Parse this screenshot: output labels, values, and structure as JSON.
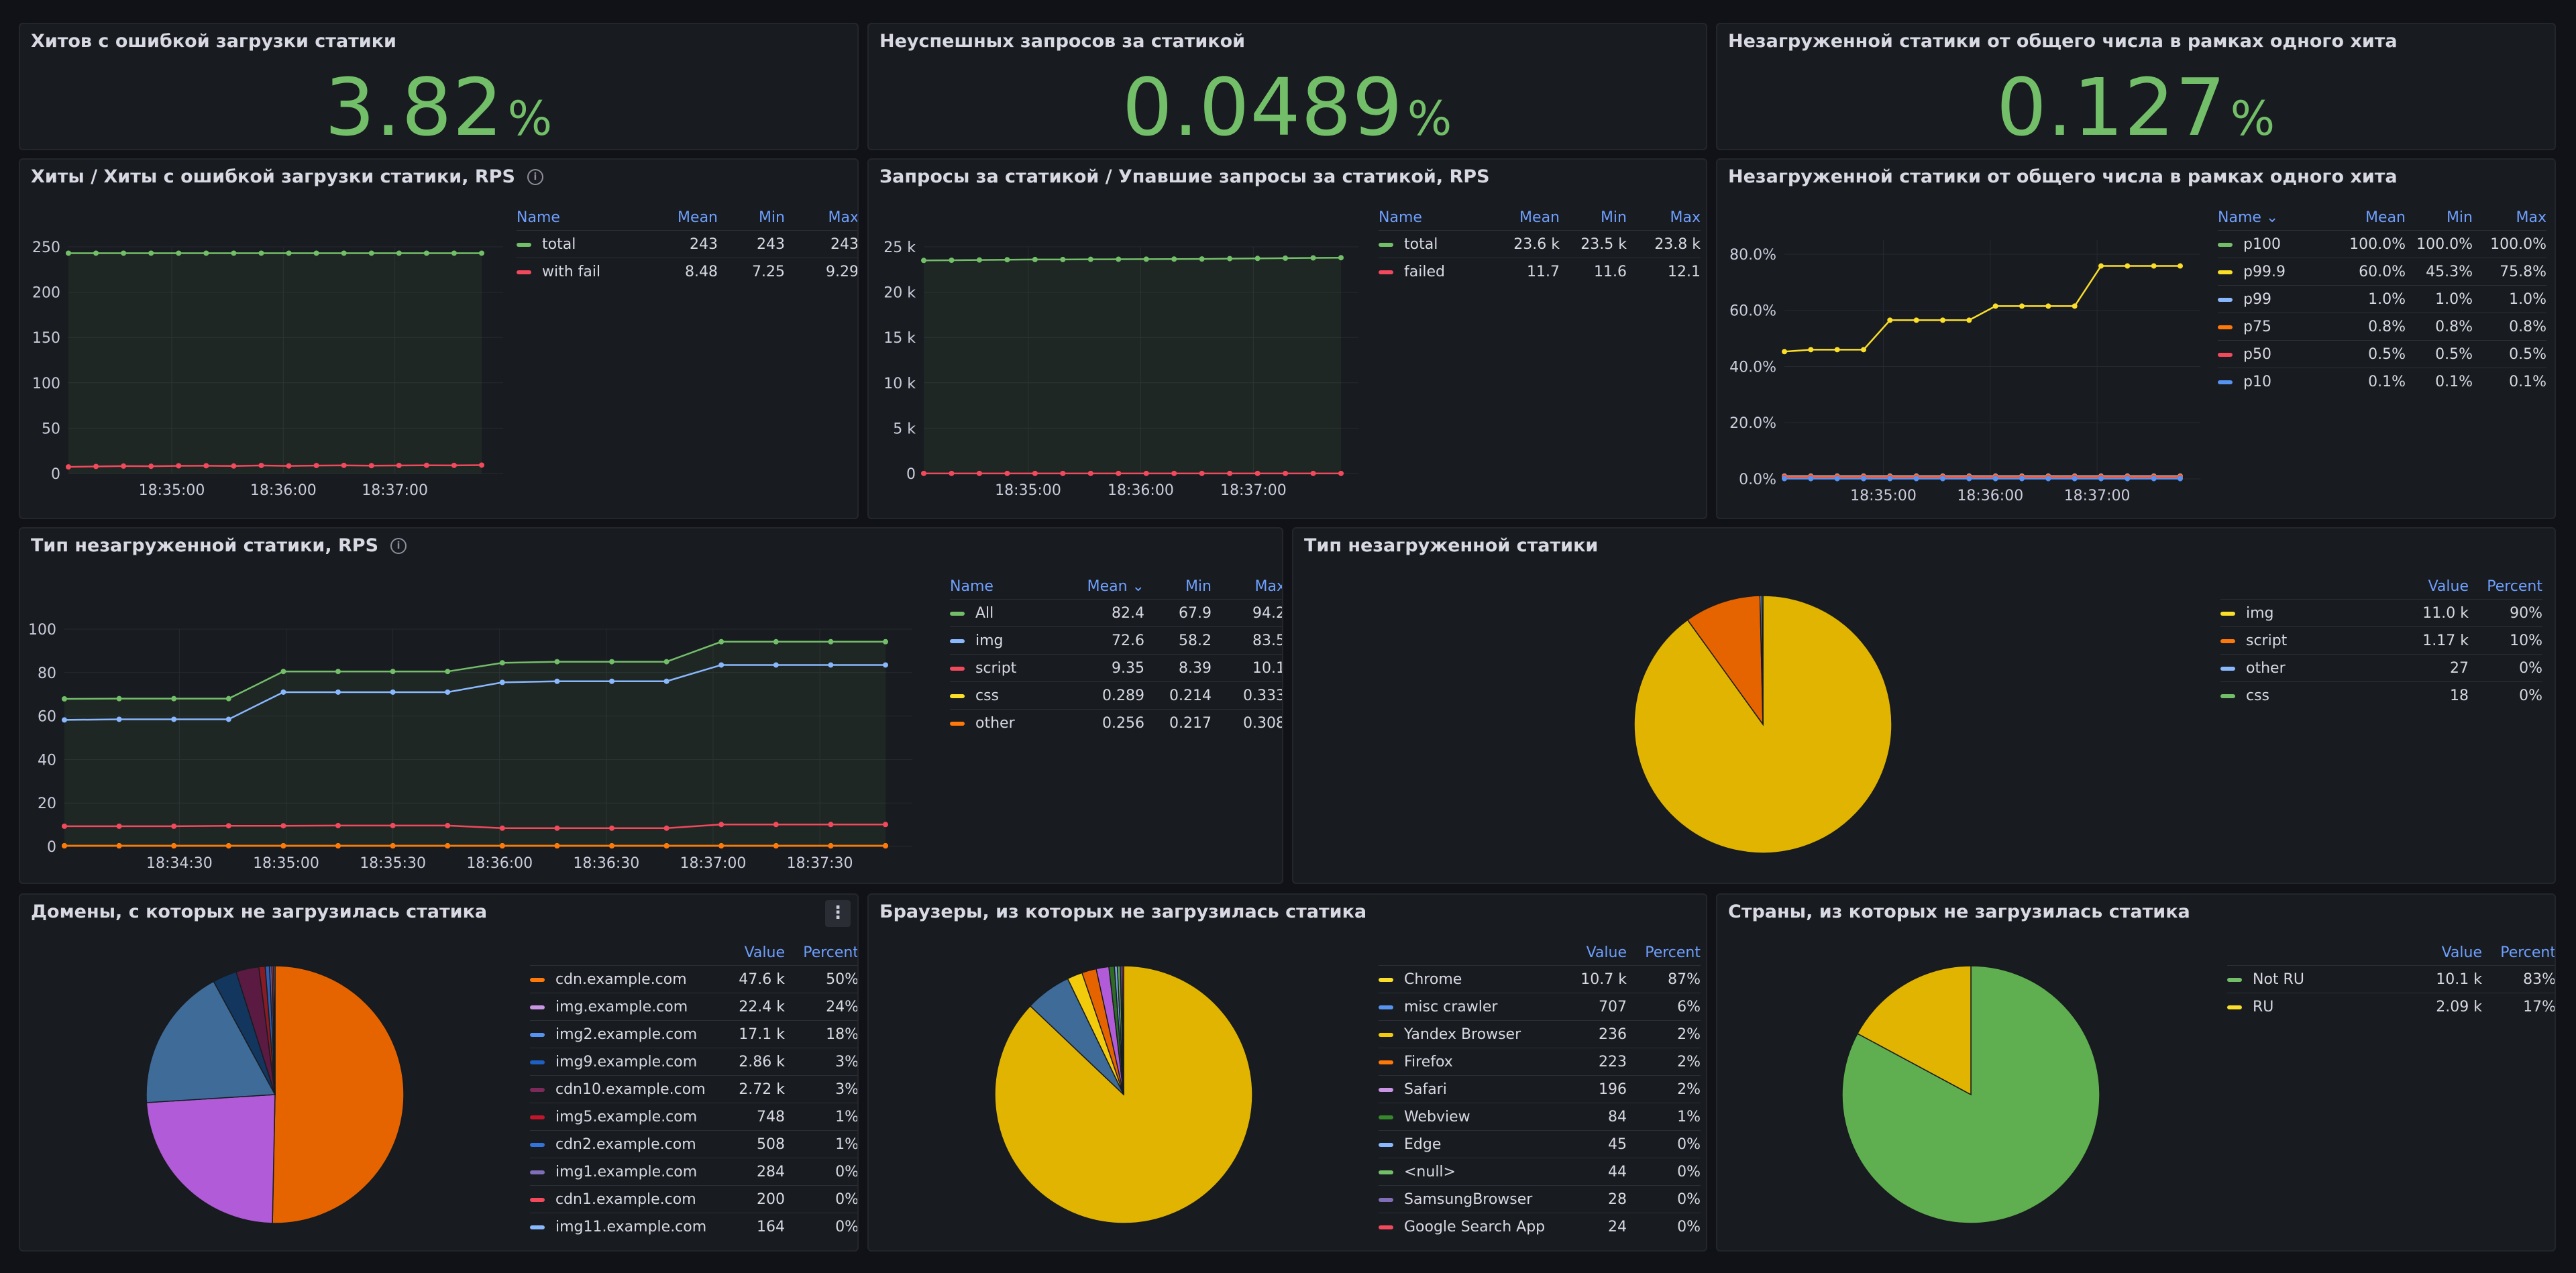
{
  "stats": [
    {
      "title": "Хитов с ошибкой загрузки статики",
      "value": "3.82",
      "unit": "%"
    },
    {
      "title": "Неуспешных запросов за статикой",
      "value": "0.0489",
      "unit": "%"
    },
    {
      "title": "Незагруженной статики от общего числа в рамках одного хита",
      "value": "0.127",
      "unit": "%"
    }
  ],
  "hits": {
    "title": "Хиты / Хиты с ошибкой загрузки статики, RPS",
    "headers": [
      "Name",
      "Mean",
      "Min",
      "Max"
    ],
    "rows": [
      {
        "name": "total",
        "color": "#73bf69",
        "cells": [
          "243",
          "243",
          "243"
        ]
      },
      {
        "name": "with fail",
        "color": "#f2495c",
        "cells": [
          "8.48",
          "7.25",
          "9.29"
        ]
      }
    ]
  },
  "requests": {
    "title": "Запросы за статикой / Упавшие запросы за статикой, RPS",
    "headers": [
      "Name",
      "Mean",
      "Min",
      "Max"
    ],
    "rows": [
      {
        "name": "total",
        "color": "#73bf69",
        "cells": [
          "23.6 k",
          "23.5 k",
          "23.8 k"
        ]
      },
      {
        "name": "failed",
        "color": "#f2495c",
        "cells": [
          "11.7",
          "11.6",
          "12.1"
        ]
      }
    ]
  },
  "percentiles": {
    "title": "Незагруженной статики от общего числа в рамках одного хита",
    "headers": [
      "Name ⌄",
      "Mean",
      "Min",
      "Max"
    ],
    "rows": [
      {
        "name": "p100",
        "color": "#73bf69",
        "cells": [
          "100.0%",
          "100.0%",
          "100.0%"
        ]
      },
      {
        "name": "p99.9",
        "color": "#fade2a",
        "cells": [
          "60.0%",
          "45.3%",
          "75.8%"
        ]
      },
      {
        "name": "p99",
        "color": "#8ab8ff",
        "cells": [
          "1.0%",
          "1.0%",
          "1.0%"
        ]
      },
      {
        "name": "p75",
        "color": "#ff780a",
        "cells": [
          "0.8%",
          "0.8%",
          "0.8%"
        ]
      },
      {
        "name": "p50",
        "color": "#f2495c",
        "cells": [
          "0.5%",
          "0.5%",
          "0.5%"
        ]
      },
      {
        "name": "p10",
        "color": "#5794f2",
        "cells": [
          "0.1%",
          "0.1%",
          "0.1%"
        ]
      }
    ]
  },
  "types": {
    "title": "Тип незагруженной статики, RPS",
    "headers": [
      "Name",
      "Mean ⌄",
      "Min",
      "Max"
    ],
    "rows": [
      {
        "name": "All",
        "color": "#73bf69",
        "cells": [
          "82.4",
          "67.9",
          "94.2"
        ]
      },
      {
        "name": "img",
        "color": "#8ab8ff",
        "cells": [
          "72.6",
          "58.2",
          "83.5"
        ]
      },
      {
        "name": "script",
        "color": "#f2495c",
        "cells": [
          "9.35",
          "8.39",
          "10.1"
        ]
      },
      {
        "name": "css",
        "color": "#fade2a",
        "cells": [
          "0.289",
          "0.214",
          "0.333"
        ]
      },
      {
        "name": "other",
        "color": "#ff780a",
        "cells": [
          "0.256",
          "0.217",
          "0.308"
        ]
      }
    ]
  },
  "type_pie": {
    "title": "Тип незагруженной статики",
    "headers": [
      "",
      "Value",
      "Percent"
    ],
    "rows": [
      {
        "name": "img",
        "color": "#fade2a",
        "cells": [
          "11.0 k",
          "90%"
        ]
      },
      {
        "name": "script",
        "color": "#ff780a",
        "cells": [
          "1.17 k",
          "10%"
        ]
      },
      {
        "name": "other",
        "color": "#8ab8ff",
        "cells": [
          "27",
          "0%"
        ]
      },
      {
        "name": "css",
        "color": "#73bf69",
        "cells": [
          "18",
          "0%"
        ]
      }
    ]
  },
  "domains": {
    "title": "Домены, с которых не загрузилась статика",
    "menu": "⋮",
    "headers": [
      "",
      "Value",
      "Percent"
    ],
    "rows": [
      {
        "name": "cdn.example.com",
        "color": "#ff780a",
        "cells": [
          "47.6 k",
          "50%"
        ]
      },
      {
        "name": "img.example.com",
        "color": "#ca95e5",
        "cells": [
          "22.4 k",
          "24%"
        ]
      },
      {
        "name": "img2.example.com",
        "color": "#5794f2",
        "cells": [
          "17.1 k",
          "18%"
        ]
      },
      {
        "name": "img9.example.com",
        "color": "#1f60c4",
        "cells": [
          "2.86 k",
          "3%"
        ]
      },
      {
        "name": "cdn10.example.com",
        "color": "#7c2a5a",
        "cells": [
          "2.72 k",
          "3%"
        ]
      },
      {
        "name": "img5.example.com",
        "color": "#c4162a",
        "cells": [
          "748",
          "1%"
        ]
      },
      {
        "name": "cdn2.example.com",
        "color": "#3274d9",
        "cells": [
          "508",
          "1%"
        ]
      },
      {
        "name": "img1.example.com",
        "color": "#806eb7",
        "cells": [
          "284",
          "0%"
        ]
      },
      {
        "name": "cdn1.example.com",
        "color": "#f2495c",
        "cells": [
          "200",
          "0%"
        ]
      },
      {
        "name": "img11.example.com",
        "color": "#8ab8ff",
        "cells": [
          "164",
          "0%"
        ]
      }
    ]
  },
  "browsers": {
    "title": "Браузеры, из которых не загрузилась статика",
    "headers": [
      "",
      "Value",
      "Percent"
    ],
    "rows": [
      {
        "name": "Chrome",
        "color": "#fade2a",
        "cells": [
          "10.7 k",
          "87%"
        ]
      },
      {
        "name": "misc crawler",
        "color": "#5794f2",
        "cells": [
          "707",
          "6%"
        ]
      },
      {
        "name": "Yandex Browser",
        "color": "#f2cc0c",
        "cells": [
          "236",
          "2%"
        ]
      },
      {
        "name": "Firefox",
        "color": "#ff780a",
        "cells": [
          "223",
          "2%"
        ]
      },
      {
        "name": "Safari",
        "color": "#ca95e5",
        "cells": [
          "196",
          "2%"
        ]
      },
      {
        "name": "Webview",
        "color": "#37872d",
        "cells": [
          "84",
          "1%"
        ]
      },
      {
        "name": "Edge",
        "color": "#8ab8ff",
        "cells": [
          "45",
          "0%"
        ]
      },
      {
        "name": "<null>",
        "color": "#73bf69",
        "cells": [
          "44",
          "0%"
        ]
      },
      {
        "name": "SamsungBrowser",
        "color": "#806eb7",
        "cells": [
          "28",
          "0%"
        ]
      },
      {
        "name": "Google Search App",
        "color": "#f2495c",
        "cells": [
          "24",
          "0%"
        ]
      }
    ]
  },
  "countries": {
    "title": "Страны, из которых не загрузилась статика",
    "headers": [
      "",
      "Value",
      "Percent"
    ],
    "rows": [
      {
        "name": "Not RU",
        "color": "#73bf69",
        "cells": [
          "10.1 k",
          "83%"
        ]
      },
      {
        "name": "RU",
        "color": "#fade2a",
        "cells": [
          "2.09 k",
          "17%"
        ]
      }
    ]
  },
  "chart_data": [
    {
      "type": "line",
      "title": "Хиты / Хиты с ошибкой загрузки статики, RPS",
      "ylim": [
        0,
        250
      ],
      "y_ticks": [
        "0",
        "50",
        "100",
        "150",
        "200",
        "250"
      ],
      "x_ticks": [
        "18:35:00",
        "18:36:00",
        "18:37:00"
      ],
      "series": [
        {
          "name": "total",
          "color": "#73bf69",
          "fill": true,
          "values": [
            243,
            243,
            243,
            243,
            243,
            243,
            243,
            243,
            243,
            243,
            243,
            243,
            243,
            243,
            243,
            243
          ]
        },
        {
          "name": "with fail",
          "color": "#f2495c",
          "values": [
            7.3,
            7.8,
            8.2,
            8.0,
            8.5,
            8.6,
            8.3,
            8.9,
            8.4,
            8.8,
            9.0,
            8.7,
            8.9,
            9.1,
            9.0,
            9.29
          ]
        }
      ]
    },
    {
      "type": "line",
      "title": "Запросы за статикой / Упавшие запросы за статикой, RPS",
      "ylim": [
        0,
        25000
      ],
      "y_ticks": [
        "0",
        "5 k",
        "10 k",
        "15 k",
        "20 k",
        "25 k"
      ],
      "x_ticks": [
        "18:35:00",
        "18:36:00",
        "18:37:00"
      ],
      "series": [
        {
          "name": "total",
          "color": "#73bf69",
          "fill": true,
          "values": [
            23500,
            23520,
            23550,
            23580,
            23600,
            23600,
            23620,
            23630,
            23640,
            23650,
            23660,
            23700,
            23720,
            23750,
            23780,
            23800
          ]
        },
        {
          "name": "failed",
          "color": "#f2495c",
          "values": [
            11.7,
            11.6,
            11.7,
            11.8,
            11.7,
            11.6,
            11.7,
            11.8,
            11.9,
            11.7,
            11.6,
            11.7,
            12.0,
            12.1,
            11.8,
            11.7
          ]
        }
      ]
    },
    {
      "type": "line",
      "title": "Незагруженной статики от общего числа в рамках одного хита",
      "ylim": [
        0,
        85
      ],
      "y_ticks": [
        "0.0%",
        "20.0%",
        "40.0%",
        "60.0%",
        "80.0%"
      ],
      "y_tick_values": [
        0,
        20,
        40,
        60,
        80
      ],
      "x_ticks": [
        "18:35:00",
        "18:36:00",
        "18:37:00"
      ],
      "series": [
        {
          "name": "p99.9",
          "color": "#fade2a",
          "values": [
            45.3,
            46,
            46,
            46,
            56.5,
            56.5,
            56.5,
            56.5,
            61.5,
            61.5,
            61.5,
            61.5,
            75.8,
            75.8,
            75.8,
            75.8
          ]
        },
        {
          "name": "p99",
          "color": "#8ab8ff",
          "values": [
            1,
            1,
            1,
            1,
            1,
            1,
            1,
            1,
            1,
            1,
            1,
            1,
            1,
            1,
            1,
            1
          ]
        },
        {
          "name": "p75",
          "color": "#ff780a",
          "values": [
            0.8,
            0.8,
            0.8,
            0.8,
            0.8,
            0.8,
            0.8,
            0.8,
            0.8,
            0.8,
            0.8,
            0.8,
            0.8,
            0.8,
            0.8,
            0.8
          ]
        },
        {
          "name": "p50",
          "color": "#f2495c",
          "values": [
            0.5,
            0.5,
            0.5,
            0.5,
            0.5,
            0.5,
            0.5,
            0.5,
            0.5,
            0.5,
            0.5,
            0.5,
            0.5,
            0.5,
            0.5,
            0.5
          ]
        },
        {
          "name": "p10",
          "color": "#5794f2",
          "values": [
            0.1,
            0.1,
            0.1,
            0.1,
            0.1,
            0.1,
            0.1,
            0.1,
            0.1,
            0.1,
            0.1,
            0.1,
            0.1,
            0.1,
            0.1,
            0.1
          ]
        }
      ]
    },
    {
      "type": "line",
      "title": "Тип незагруженной статики, RPS",
      "ylim": [
        0,
        100
      ],
      "y_ticks": [
        "0",
        "20",
        "40",
        "60",
        "80",
        "100"
      ],
      "x_ticks": [
        "18:34:30",
        "18:35:00",
        "18:35:30",
        "18:36:00",
        "18:36:30",
        "18:37:00",
        "18:37:30"
      ],
      "series": [
        {
          "name": "All",
          "color": "#73bf69",
          "fill": true,
          "values": [
            67.9,
            68,
            68,
            68,
            80.5,
            80.5,
            80.5,
            80.5,
            84.5,
            85,
            85,
            85,
            94.2,
            94.2,
            94.2,
            94.2
          ]
        },
        {
          "name": "img",
          "color": "#8ab8ff",
          "values": [
            58.2,
            58.5,
            58.5,
            58.5,
            71,
            71,
            71,
            71,
            75.5,
            76,
            76,
            76,
            83.5,
            83.5,
            83.5,
            83.5
          ]
        },
        {
          "name": "script",
          "color": "#f2495c",
          "values": [
            9.3,
            9.3,
            9.3,
            9.5,
            9.5,
            9.6,
            9.6,
            9.6,
            8.4,
            8.4,
            8.4,
            8.4,
            10.1,
            10.1,
            10.1,
            10.1
          ]
        },
        {
          "name": "css",
          "color": "#fade2a",
          "values": [
            0.3,
            0.3,
            0.3,
            0.3,
            0.3,
            0.3,
            0.3,
            0.3,
            0.3,
            0.3,
            0.3,
            0.3,
            0.3,
            0.3,
            0.3,
            0.3
          ]
        },
        {
          "name": "other",
          "color": "#ff780a",
          "values": [
            0.26,
            0.26,
            0.26,
            0.26,
            0.26,
            0.26,
            0.26,
            0.26,
            0.26,
            0.26,
            0.26,
            0.26,
            0.26,
            0.26,
            0.26,
            0.26
          ]
        }
      ]
    },
    {
      "type": "pie",
      "title": "Тип незагруженной статики",
      "labels": [
        "img",
        "script",
        "other",
        "css"
      ],
      "values": [
        11000,
        1170,
        27,
        18
      ],
      "colors": [
        "#e0b400",
        "#e66400",
        "#8ab8ff",
        "#73bf69"
      ]
    },
    {
      "type": "pie",
      "title": "Домены, с которых не загрузилась статика",
      "labels": [
        "cdn.example.com",
        "img.example.com",
        "img2.example.com",
        "img9.example.com",
        "cdn10.example.com",
        "img5.example.com",
        "cdn2.example.com",
        "img1.example.com",
        "cdn1.example.com",
        "img11.example.com"
      ],
      "values": [
        47600,
        22400,
        17100,
        2860,
        2720,
        748,
        508,
        284,
        200,
        164
      ],
      "colors": [
        "#e66400",
        "#b25bd8",
        "#3f6b99",
        "#12365e",
        "#5a1a42",
        "#8a1a23",
        "#2f5fb0",
        "#6b5aa0",
        "#d0394b",
        "#7aa3e0"
      ]
    },
    {
      "type": "pie",
      "title": "Браузеры, из которых не загрузилась статика",
      "labels": [
        "Chrome",
        "misc crawler",
        "Yandex Browser",
        "Firefox",
        "Safari",
        "Webview",
        "Edge",
        "<null>",
        "SamsungBrowser",
        "Google Search App"
      ],
      "values": [
        10700,
        707,
        236,
        223,
        196,
        84,
        45,
        44,
        28,
        24
      ],
      "colors": [
        "#e0b400",
        "#3f6b99",
        "#f2cc0c",
        "#e66400",
        "#b25bd8",
        "#2d6b26",
        "#7aa3e0",
        "#5fa555",
        "#6b5aa0",
        "#d0394b"
      ]
    },
    {
      "type": "pie",
      "title": "Страны, из которых не загрузилась статика",
      "labels": [
        "Not RU",
        "RU"
      ],
      "values": [
        10100,
        2090
      ],
      "colors": [
        "#5fae4f",
        "#e0b400"
      ]
    }
  ]
}
